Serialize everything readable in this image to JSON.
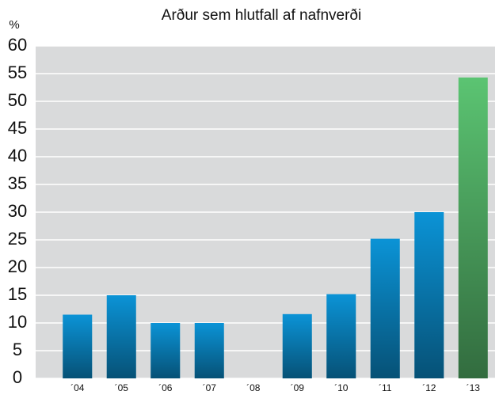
{
  "chart_data": {
    "type": "bar",
    "title": "Arður sem hlutfall af nafnverði",
    "y_label": "%",
    "categories": [
      "´04",
      "´05",
      "´06",
      "´07",
      "´08",
      "´09",
      "´10",
      "´11",
      "´12",
      "´13"
    ],
    "values": [
      11.5,
      15,
      10,
      10,
      0,
      11.6,
      15.2,
      25.2,
      30,
      54.3
    ],
    "colors": [
      "#0b93d6",
      "#0b93d6",
      "#0b93d6",
      "#0b93d6",
      "#0b93d6",
      "#0b93d6",
      "#0b93d6",
      "#0b93d6",
      "#0b93d6",
      "#5bc472"
    ],
    "ylim": [
      0,
      60
    ],
    "yticks": [
      0,
      5,
      10,
      15,
      20,
      25,
      30,
      35,
      40,
      45,
      50,
      55,
      60
    ],
    "grid": true
  }
}
